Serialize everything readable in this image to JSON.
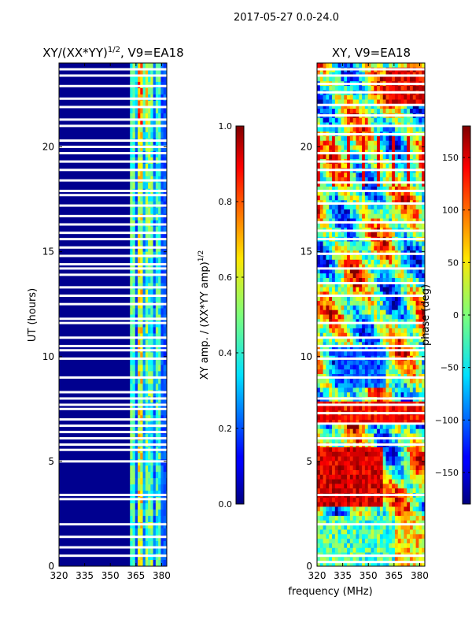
{
  "figure_title": "2017-05-27 0.0-24.0",
  "shared_xlabel": "frequency (MHz)",
  "chart_data": [
    {
      "type": "heatmap",
      "title_prefix": "XY/(XX*YY)",
      "title_exp": "1/2",
      "title_suffix": ", V9=EA18",
      "xlabel": "",
      "ylabel": "UT (hours)",
      "xlim": [
        320,
        383
      ],
      "ylim": [
        0,
        24
      ],
      "x_ticks": [
        320,
        335,
        350,
        365,
        380
      ],
      "y_ticks": [
        0,
        5,
        10,
        15,
        20
      ],
      "colormap": "jet",
      "colorbar": {
        "label_main": "XY amp. / (XX*YY amp)",
        "label_exp": "1/2",
        "range": [
          0.0,
          1.0
        ],
        "ticks": [
          "0.0",
          "0.2",
          "0.4",
          "0.6",
          "0.8",
          "1.0"
        ]
      },
      "gaps_ut_hours": [
        0.5,
        0.9,
        1.4,
        2.0,
        3.2,
        3.4,
        5.0,
        5.55,
        5.8,
        6.1,
        6.4,
        6.7,
        7.0,
        7.5,
        7.7,
        8.0,
        8.3,
        9.0,
        9.9,
        10.3,
        10.5,
        10.9,
        11.6,
        11.8,
        12.5,
        12.9,
        13.3,
        13.9,
        14.2,
        14.4,
        14.8,
        15.2,
        15.6,
        15.9,
        16.3,
        16.7,
        17.2,
        17.7,
        17.9,
        18.4,
        18.9,
        19.3,
        19.7,
        20.0,
        20.3,
        21.0,
        21.3,
        21.9,
        22.3,
        22.9,
        23.4,
        23.7
      ]
    },
    {
      "type": "heatmap",
      "title": "XY, V9=EA18",
      "xlabel": "",
      "ylabel": "",
      "xlim": [
        320,
        383
      ],
      "ylim": [
        0,
        24
      ],
      "x_ticks": [
        320,
        335,
        350,
        365,
        380
      ],
      "y_ticks": [
        0,
        5,
        10,
        15,
        20
      ],
      "colormap": "jet",
      "colorbar": {
        "label": "phase (deg)",
        "range": [
          -180,
          180
        ],
        "ticks": [
          "−150",
          "−100",
          "−50",
          "0",
          "50",
          "100",
          "150"
        ]
      },
      "gaps_ut_hours": [
        0.2,
        0.5,
        2.0,
        3.4,
        5.8,
        6.1,
        6.8,
        7.3,
        7.7,
        8.0,
        9.0,
        9.9,
        10.3,
        10.5,
        10.9,
        11.6,
        12.9,
        13.5,
        14.2,
        14.9,
        15.6,
        16.0,
        16.4,
        17.3,
        17.9,
        18.3,
        18.9,
        19.3,
        19.7,
        20.6,
        21.0,
        21.5,
        22.0,
        22.6,
        23.0,
        23.4,
        23.7
      ]
    }
  ]
}
